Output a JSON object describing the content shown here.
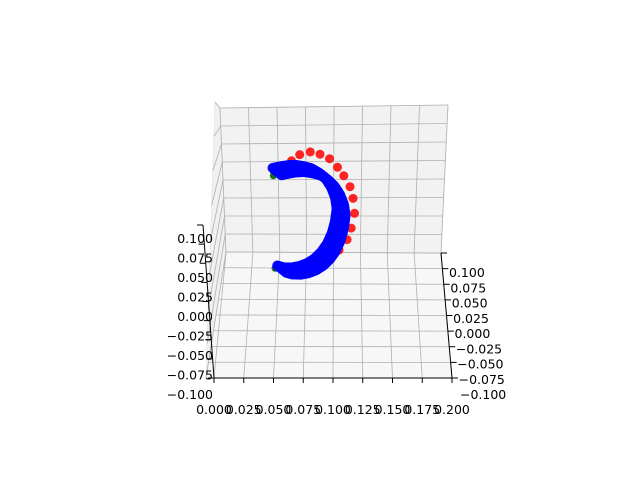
{
  "chart_data": {
    "type": "scatter",
    "projection": "3d",
    "title": "",
    "xlabel": "",
    "ylabel": "",
    "zlabel": "",
    "grid": true,
    "x_ticks": [
      "0.000",
      "0.025",
      "0.050",
      "0.075",
      "0.100",
      "0.125",
      "0.150",
      "0.175",
      "0.200"
    ],
    "y_ticks": [
      "0.100",
      "0.075",
      "0.050",
      "0.025",
      "0.000",
      "−0.025",
      "−0.050",
      "−0.075",
      "−0.100"
    ],
    "z_ticks": [
      "0.100",
      "0.075",
      "0.050",
      "0.025",
      "0.000",
      "−0.025",
      "−0.050",
      "−0.075",
      "−0.100"
    ],
    "xlim": [
      0.0,
      0.2
    ],
    "ylim": [
      -0.1,
      0.1
    ],
    "zlim": [
      -0.1,
      0.1
    ],
    "series": [
      {
        "color": "#ff0000",
        "points": [
          [
            0.035,
            0.02,
            0.06
          ],
          [
            0.045,
            0.03,
            0.068
          ],
          [
            0.058,
            0.04,
            0.072
          ],
          [
            0.07,
            0.05,
            0.07
          ],
          [
            0.082,
            0.055,
            0.065
          ],
          [
            0.092,
            0.058,
            0.055
          ],
          [
            0.1,
            0.06,
            0.045
          ],
          [
            0.108,
            0.06,
            0.032
          ],
          [
            0.112,
            0.058,
            0.018
          ],
          [
            0.114,
            0.055,
            0.0
          ],
          [
            0.11,
            0.05,
            -0.018
          ],
          [
            0.105,
            0.045,
            -0.032
          ],
          [
            0.095,
            0.038,
            -0.045
          ],
          [
            0.085,
            0.032,
            -0.055
          ],
          [
            0.075,
            0.025,
            -0.062
          ],
          [
            0.066,
            0.02,
            -0.066
          ],
          [
            0.058,
            0.015,
            -0.068
          ],
          [
            0.05,
            0.01,
            -0.066
          ]
        ]
      },
      {
        "color": "#006400",
        "points": [
          [
            0.02,
            0.01,
            0.055
          ],
          [
            0.02,
            0.012,
            0.05
          ],
          [
            0.02,
            0.01,
            0.045
          ],
          [
            0.022,
            0.012,
            -0.065
          ]
        ]
      },
      {
        "color": "#0000ff",
        "points": [
          [
            0.022,
            0.01,
            0.05
          ],
          [
            0.03,
            0.015,
            0.052
          ],
          [
            0.04,
            0.02,
            0.054
          ],
          [
            0.05,
            0.027,
            0.055
          ],
          [
            0.06,
            0.033,
            0.054
          ],
          [
            0.07,
            0.04,
            0.052
          ],
          [
            0.08,
            0.045,
            0.047
          ],
          [
            0.088,
            0.05,
            0.04
          ],
          [
            0.095,
            0.052,
            0.03
          ],
          [
            0.1,
            0.054,
            0.018
          ],
          [
            0.102,
            0.054,
            0.005
          ],
          [
            0.1,
            0.052,
            -0.01
          ],
          [
            0.096,
            0.048,
            -0.025
          ],
          [
            0.09,
            0.043,
            -0.038
          ],
          [
            0.083,
            0.037,
            -0.048
          ],
          [
            0.075,
            0.031,
            -0.056
          ],
          [
            0.066,
            0.025,
            -0.062
          ],
          [
            0.056,
            0.02,
            -0.066
          ],
          [
            0.046,
            0.016,
            -0.068
          ],
          [
            0.036,
            0.013,
            -0.068
          ],
          [
            0.028,
            0.011,
            -0.066
          ]
        ]
      }
    ]
  }
}
